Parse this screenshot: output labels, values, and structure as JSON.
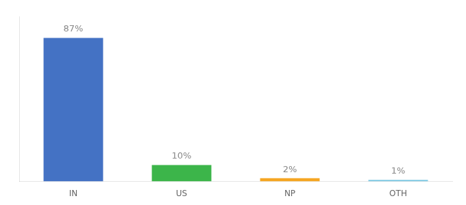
{
  "chart_data": {
    "type": "bar",
    "categories": [
      "IN",
      "US",
      "NP",
      "OTH"
    ],
    "values": [
      87,
      10,
      2,
      1
    ],
    "value_labels": [
      "87%",
      "10%",
      "2%",
      "1%"
    ],
    "colors": [
      "#4472c4",
      "#3cb54a",
      "#f5a623",
      "#7ec8e3"
    ],
    "ylim": [
      0,
      100
    ],
    "grid": false,
    "tick_labels": "x"
  }
}
